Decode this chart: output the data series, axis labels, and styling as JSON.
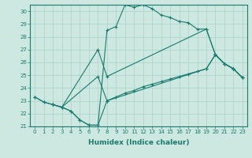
{
  "xlabel": "Humidex (Indice chaleur)",
  "xlim": [
    -0.5,
    23.5
  ],
  "ylim": [
    21,
    30.5
  ],
  "yticks": [
    21,
    22,
    23,
    24,
    25,
    26,
    27,
    28,
    29,
    30
  ],
  "xticks": [
    0,
    1,
    2,
    3,
    4,
    5,
    6,
    7,
    8,
    9,
    10,
    11,
    12,
    13,
    14,
    15,
    16,
    17,
    18,
    19,
    20,
    21,
    22,
    23
  ],
  "bg_color": "#cce8e0",
  "line_color": "#1a7a6e",
  "grid_color": "#b0d4cc",
  "line1_x": [
    0,
    1,
    2,
    3,
    4,
    5,
    6,
    7,
    8,
    9,
    10,
    11,
    12,
    13,
    14,
    15,
    16,
    17,
    18,
    19,
    20,
    21,
    22,
    23
  ],
  "line1_y": [
    23.3,
    22.9,
    22.7,
    22.5,
    22.2,
    21.5,
    21.1,
    21.1,
    28.5,
    28.8,
    30.5,
    30.3,
    30.5,
    30.2,
    29.7,
    29.5,
    29.2,
    29.1,
    28.6,
    28.6,
    26.6,
    25.9,
    25.5,
    24.8
  ],
  "line2_x": [
    0,
    1,
    2,
    3,
    4,
    5,
    6,
    7,
    8,
    9,
    10,
    11,
    12,
    13,
    14,
    15,
    16,
    17,
    18,
    19,
    20,
    21,
    22,
    23
  ],
  "line2_y": [
    23.3,
    22.9,
    22.7,
    22.5,
    22.2,
    21.5,
    21.1,
    21.1,
    23.0,
    23.3,
    23.6,
    23.8,
    24.1,
    24.3,
    24.5,
    24.7,
    24.9,
    25.1,
    25.3,
    25.5,
    26.6,
    25.9,
    25.5,
    24.8
  ],
  "line3_x": [
    2,
    3,
    7,
    8,
    19,
    20,
    21,
    22,
    23
  ],
  "line3_y": [
    22.7,
    22.5,
    27.0,
    24.9,
    28.6,
    26.6,
    25.9,
    25.5,
    24.8
  ],
  "line4_x": [
    2,
    3,
    7,
    8,
    19,
    20,
    21,
    22,
    23
  ],
  "line4_y": [
    22.7,
    22.5,
    24.9,
    23.0,
    25.5,
    26.6,
    25.9,
    25.5,
    24.8
  ],
  "xlabel_fontsize": 6.5,
  "tick_fontsize": 5,
  "linewidth": 0.8,
  "markersize": 2.5
}
